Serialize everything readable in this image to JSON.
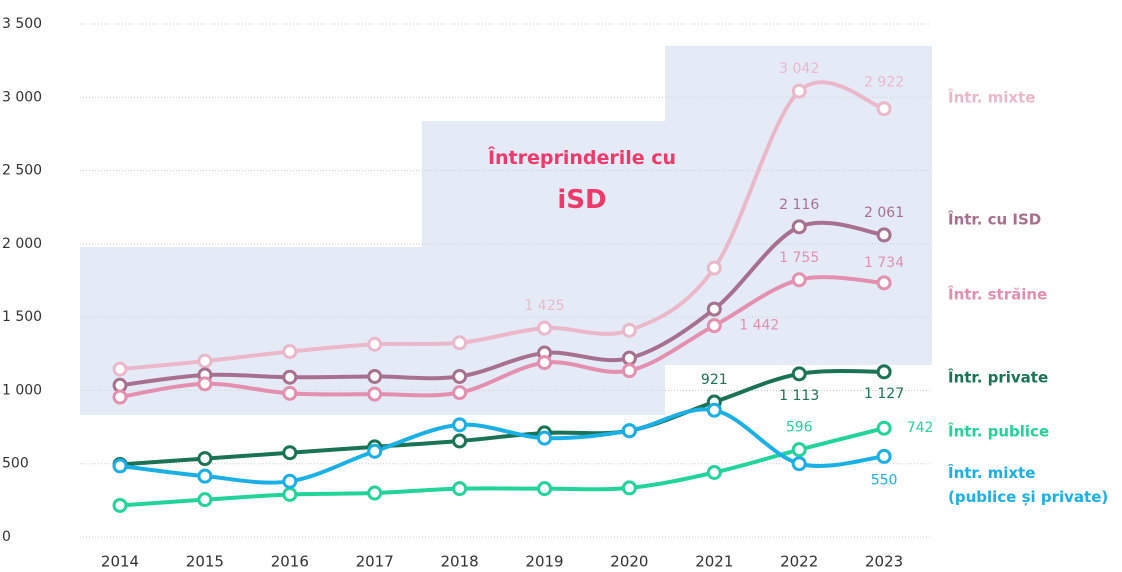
{
  "chart_data": {
    "type": "line",
    "annotation": "Întreprinderile cu iSD",
    "categories": [
      "2014",
      "2015",
      "2016",
      "2017",
      "2018",
      "2019",
      "2020",
      "2021",
      "2022",
      "2023"
    ],
    "ylim": [
      0,
      3500
    ],
    "yticks": [
      0,
      500,
      {
        "value": 1000,
        "label": "1 000"
      },
      {
        "value": 1500,
        "label": "1 500"
      },
      {
        "value": 2000,
        "label": "2 000"
      },
      {
        "value": 2500,
        "label": "2 500"
      },
      {
        "value": 3000,
        "label": "3 000"
      },
      {
        "value": 3500,
        "label": "3 500"
      }
    ],
    "grid": true,
    "series": [
      {
        "name": "Într. mixte",
        "color": "#ebb8cb",
        "values": [
          1145,
          1200,
          1265,
          1315,
          1325,
          1425,
          1410,
          1835,
          3042,
          2922
        ],
        "value_labels": [
          null,
          null,
          null,
          null,
          null,
          "1 425",
          null,
          null,
          "3 042",
          "2 922"
        ]
      },
      {
        "name": "Într. cu ISD",
        "color": "#a8708f",
        "values": [
          1035,
          1105,
          1090,
          1095,
          1095,
          1255,
          1220,
          1555,
          2116,
          2061
        ],
        "value_labels": [
          null,
          null,
          null,
          null,
          null,
          null,
          null,
          null,
          "2 116",
          "2 061"
        ]
      },
      {
        "name": "Într. străine",
        "color": "#e48fb0",
        "values": [
          955,
          1045,
          980,
          975,
          985,
          1190,
          1135,
          1442,
          1755,
          1734
        ],
        "value_labels": [
          null,
          null,
          null,
          null,
          null,
          null,
          null,
          "1 442",
          "1 755",
          "1 734"
        ]
      },
      {
        "name": "Într. private",
        "color": "#1a7355",
        "values": [
          495,
          535,
          575,
          615,
          655,
          710,
          725,
          921,
          1113,
          1127
        ],
        "value_labels": [
          null,
          null,
          null,
          null,
          null,
          null,
          null,
          "921",
          "1 113",
          "1 127"
        ]
      },
      {
        "name": "Într. publice",
        "color": "#22d49a",
        "values": [
          215,
          255,
          290,
          300,
          330,
          330,
          335,
          440,
          596,
          742
        ],
        "value_labels": [
          null,
          null,
          null,
          null,
          null,
          null,
          null,
          null,
          "596",
          "742"
        ]
      },
      {
        "name": "Într. mixte (publice și private)",
        "color": "#1ab0e6",
        "values": [
          485,
          415,
          380,
          585,
          765,
          675,
          725,
          865,
          500,
          550
        ],
        "value_labels": [
          null,
          null,
          null,
          null,
          null,
          null,
          null,
          null,
          null,
          "550"
        ]
      }
    ]
  }
}
